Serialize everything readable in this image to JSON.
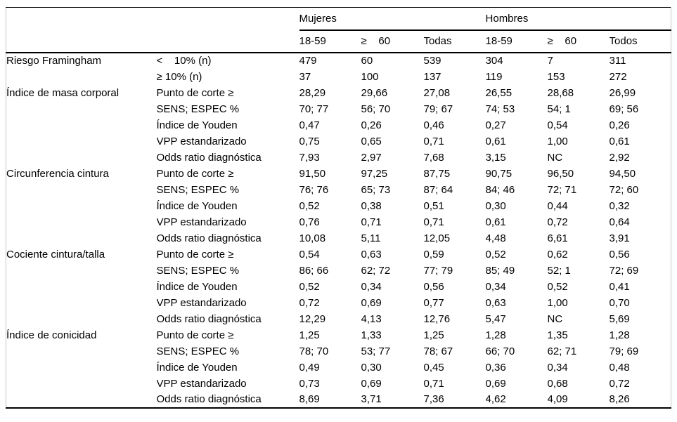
{
  "table": {
    "group_headers": [
      {
        "label": "Mujeres"
      },
      {
        "label": "Hombres"
      }
    ],
    "column_headers": [
      "18-59",
      "≥    60",
      "Todas",
      "18-59",
      "≥    60",
      "Todos"
    ],
    "rows": [
      {
        "group": "Riesgo Framingham",
        "metric": "<    10% (n)",
        "values": [
          "479",
          "60",
          "539",
          "304",
          "7",
          "311"
        ]
      },
      {
        "group": "",
        "metric": "≥ 10% (n)",
        "values": [
          "37",
          "100",
          "137",
          "119",
          "153",
          "272"
        ]
      },
      {
        "group": "Índice de masa corporal",
        "metric": "Punto de corte ≥",
        "values": [
          "28,29",
          "29,66",
          "27,08",
          "26,55",
          "28,68",
          "26,99"
        ]
      },
      {
        "group": "",
        "metric": "SENS; ESPEC %",
        "values": [
          "70; 77",
          "56; 70",
          "79; 67",
          "74; 53",
          "54; 1",
          "69; 56"
        ]
      },
      {
        "group": "",
        "metric": "Índice de Youden",
        "values": [
          "0,47",
          "0,26",
          "0,46",
          "0,27",
          "0,54",
          "0,26"
        ]
      },
      {
        "group": "",
        "metric": "VPP estandarizado",
        "values": [
          "0,75",
          "0,65",
          "0,71",
          "0,61",
          "1,00",
          "0,61"
        ]
      },
      {
        "group": "",
        "metric": "Odds ratio diagnóstica",
        "values": [
          "7,93",
          "2,97",
          "7,68",
          "3,15",
          "NC",
          "2,92"
        ]
      },
      {
        "group": "Circunferencia cintura",
        "metric": "Punto de corte ≥",
        "values": [
          "91,50",
          "97,25",
          "87,75",
          "90,75",
          "96,50",
          "94,50"
        ]
      },
      {
        "group": "",
        "metric": "SENS; ESPEC %",
        "values": [
          "76; 76",
          "65; 73",
          "87; 64",
          "84; 46",
          "72; 71",
          "72; 60"
        ]
      },
      {
        "group": "",
        "metric": "Índice de Youden",
        "values": [
          "0,52",
          "0,38",
          "0,51",
          "0,30",
          "0,44",
          "0,32"
        ]
      },
      {
        "group": "",
        "metric": "VPP estandarizado",
        "values": [
          "0,76",
          "0,71",
          "0,71",
          "0,61",
          "0,72",
          "0,64"
        ]
      },
      {
        "group": "",
        "metric": "Odds ratio diagnóstica",
        "values": [
          "10,08",
          "5,11",
          "12,05",
          "4,48",
          "6,61",
          "3,91"
        ]
      },
      {
        "group": "Cociente cintura/talla",
        "metric": "Punto de corte ≥",
        "values": [
          "0,54",
          "0,63",
          "0,59",
          "0,52",
          "0,62",
          "0,56"
        ]
      },
      {
        "group": "",
        "metric": "SENS; ESPEC %",
        "values": [
          "86; 66",
          "62; 72",
          "77; 79",
          "85; 49",
          "52; 1",
          "72; 69"
        ]
      },
      {
        "group": "",
        "metric": "Índice de Youden",
        "values": [
          "0,52",
          "0,34",
          "0,56",
          "0,34",
          "0,52",
          "0,41"
        ]
      },
      {
        "group": "",
        "metric": "VPP estandarizado",
        "values": [
          "0,72",
          "0,69",
          "0,77",
          "0,63",
          "1,00",
          "0,70"
        ]
      },
      {
        "group": "",
        "metric": "Odds ratio diagnóstica",
        "values": [
          "12,29",
          "4,13",
          "12,76",
          "5,47",
          "NC",
          "5,69"
        ]
      },
      {
        "group": "Índice de conicidad",
        "metric": "Punto de corte ≥",
        "values": [
          "1,25",
          "1,33",
          "1,25",
          "1,28",
          "1,35",
          "1,28"
        ]
      },
      {
        "group": "",
        "metric": "SENS; ESPEC %",
        "values": [
          "78; 70",
          "53; 77",
          "78; 67",
          "66; 70",
          "62; 71",
          "79; 69"
        ]
      },
      {
        "group": "",
        "metric": "Índice de Youden",
        "values": [
          "0,49",
          "0,30",
          "0,45",
          "0,36",
          "0,34",
          "0,48"
        ]
      },
      {
        "group": "",
        "metric": "VPP estandarizado",
        "values": [
          "0,73",
          "0,69",
          "0,71",
          "0,69",
          "0,68",
          "0,72"
        ]
      },
      {
        "group": "",
        "metric": "Odds ratio diagnóstica",
        "values": [
          "8,69",
          "3,71",
          "7,36",
          "4,62",
          "4,09",
          "8,26"
        ]
      }
    ]
  }
}
